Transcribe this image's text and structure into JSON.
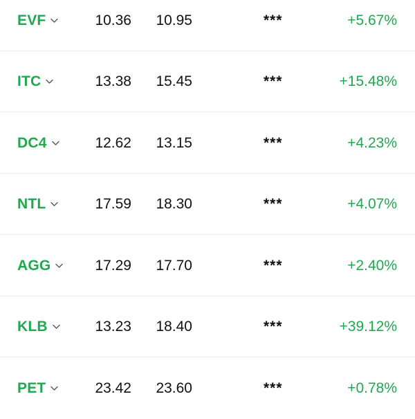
{
  "theme": {
    "up_color": "#1fa84f",
    "text_color": "#111111",
    "divider_color": "#ececec"
  },
  "rows": [
    {
      "symbol": "EVF",
      "ref": "10.36",
      "price": "10.95",
      "volume": "***",
      "change": "+5.67%"
    },
    {
      "symbol": "ITC",
      "ref": "13.38",
      "price": "15.45",
      "volume": "***",
      "change": "+15.48%"
    },
    {
      "symbol": "DC4",
      "ref": "12.62",
      "price": "13.15",
      "volume": "***",
      "change": "+4.23%"
    },
    {
      "symbol": "NTL",
      "ref": "17.59",
      "price": "18.30",
      "volume": "***",
      "change": "+4.07%"
    },
    {
      "symbol": "AGG",
      "ref": "17.29",
      "price": "17.70",
      "volume": "***",
      "change": "+2.40%"
    },
    {
      "symbol": "KLB",
      "ref": "13.23",
      "price": "18.40",
      "volume": "***",
      "change": "+39.12%"
    },
    {
      "symbol": "PET",
      "ref": "23.42",
      "price": "23.60",
      "volume": "***",
      "change": "+0.78%"
    }
  ]
}
